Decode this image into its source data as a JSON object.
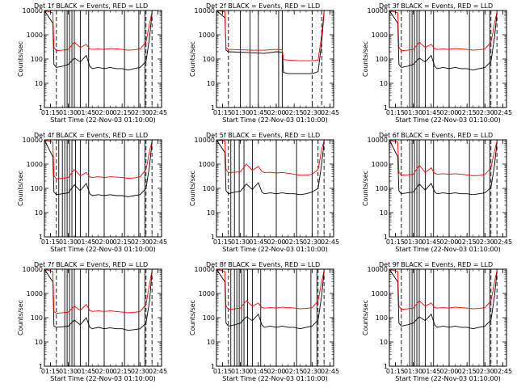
{
  "figure": {
    "ylabel": "Counts/sec",
    "xlabel": "Start Time (22-Nov-03 01:10:00)",
    "x_ticks": [
      "01:15",
      "01:30",
      "01:45",
      "02:00",
      "02:15",
      "02:30",
      "02:45"
    ],
    "y_ticks": [
      "1",
      "10",
      "100",
      "1000",
      "10000"
    ],
    "series_colors": {
      "events": "#000000",
      "lld": "#ff0000"
    }
  },
  "chart_data": [
    {
      "type": "line",
      "title": "Det 1f BLACK = Events, RED = LLD",
      "x": [
        "01:10",
        "01:17",
        "01:18",
        "01:20",
        "01:25",
        "01:30",
        "01:35",
        "01:40",
        "01:45",
        "01:48",
        "01:50",
        "01:55",
        "02:00",
        "02:05",
        "02:10",
        "02:15",
        "02:20",
        "02:25",
        "02:30",
        "02:35",
        "02:38",
        "02:40"
      ],
      "series": [
        {
          "values": [
            10000,
            3000,
            60,
            45,
            50,
            60,
            110,
            75,
            140,
            50,
            40,
            45,
            40,
            45,
            40,
            40,
            35,
            40,
            45,
            80,
            800,
            8000
          ]
        },
        {
          "values": [
            10000,
            8000,
            300,
            220,
            230,
            250,
            500,
            300,
            400,
            260,
            250,
            260,
            250,
            270,
            260,
            250,
            230,
            240,
            260,
            500,
            3000,
            9000
          ]
        }
      ],
      "xlim": [
        "01:10",
        "02:48"
      ],
      "ylim": [
        1,
        10000
      ],
      "yscale": "log",
      "vlines_solid": [
        "01:27",
        "01:29",
        "01:31",
        "01:33",
        "01:35",
        "01:40",
        "01:47",
        "02:00",
        "02:17",
        "02:29",
        "02:34"
      ],
      "vlines_dashed": [
        "01:20",
        "02:35",
        "02:40"
      ]
    },
    {
      "type": "line",
      "title": "Det 2f BLACK = Events, RED = LLD",
      "x": [
        "01:10",
        "01:17",
        "01:18",
        "01:20",
        "01:30",
        "01:40",
        "01:50",
        "02:00",
        "02:05",
        "02:06",
        "02:10",
        "02:20",
        "02:30",
        "02:35",
        "02:38",
        "02:40"
      ],
      "series": [
        {
          "values": [
            10000,
            5000,
            230,
            200,
            190,
            180,
            170,
            200,
            190,
            28,
            25,
            25,
            25,
            30,
            500,
            8000
          ]
        },
        {
          "values": [
            10000,
            9000,
            280,
            250,
            240,
            230,
            230,
            250,
            240,
            95,
            90,
            85,
            85,
            90,
            1000,
            9500
          ]
        }
      ],
      "xlim": [
        "01:10",
        "02:48"
      ],
      "ylim": [
        1,
        10000
      ],
      "yscale": "log",
      "vlines_solid": [
        "01:30",
        "01:38",
        "01:45",
        "02:02",
        "02:05"
      ],
      "vlines_dashed": [
        "01:20",
        "02:30",
        "02:38"
      ]
    },
    {
      "type": "line",
      "title": "Det 3f BLACK = Events, RED = LLD",
      "x": [
        "01:10",
        "01:17",
        "01:18",
        "01:20",
        "01:25",
        "01:30",
        "01:35",
        "01:40",
        "01:45",
        "01:48",
        "01:50",
        "01:55",
        "02:00",
        "02:05",
        "02:10",
        "02:15",
        "02:20",
        "02:25",
        "02:30",
        "02:35",
        "02:38",
        "02:40"
      ],
      "series": [
        {
          "values": [
            10000,
            3000,
            60,
            45,
            50,
            60,
            110,
            75,
            140,
            50,
            40,
            45,
            40,
            45,
            40,
            40,
            35,
            40,
            45,
            80,
            800,
            8000
          ]
        },
        {
          "values": [
            10000,
            8000,
            300,
            220,
            230,
            250,
            500,
            300,
            400,
            260,
            250,
            260,
            250,
            270,
            260,
            250,
            230,
            240,
            260,
            500,
            3000,
            9000
          ]
        }
      ],
      "xlim": [
        "01:10",
        "02:48"
      ],
      "ylim": [
        1,
        10000
      ],
      "yscale": "log",
      "vlines_solid": [
        "01:27",
        "01:29",
        "01:31",
        "01:33",
        "01:35",
        "01:40",
        "01:47",
        "02:00",
        "02:17",
        "02:29",
        "02:34"
      ],
      "vlines_dashed": [
        "01:20",
        "02:35",
        "02:40"
      ]
    },
    {
      "type": "line",
      "title": "Det 4f BLACK = Events, RED = LLD",
      "x": [
        "01:10",
        "01:17",
        "01:18",
        "01:20",
        "01:25",
        "01:30",
        "01:35",
        "01:40",
        "01:45",
        "01:48",
        "01:50",
        "01:55",
        "02:00",
        "02:05",
        "02:10",
        "02:15",
        "02:20",
        "02:25",
        "02:30",
        "02:35",
        "02:38",
        "02:40"
      ],
      "series": [
        {
          "values": [
            10000,
            2000,
            70,
            55,
            60,
            65,
            140,
            80,
            160,
            60,
            50,
            55,
            50,
            55,
            50,
            50,
            45,
            50,
            55,
            100,
            900,
            8000
          ]
        },
        {
          "values": [
            10000,
            8000,
            330,
            250,
            260,
            280,
            600,
            330,
            450,
            300,
            280,
            300,
            280,
            300,
            290,
            280,
            260,
            270,
            300,
            600,
            3500,
            9000
          ]
        }
      ],
      "xlim": [
        "01:10",
        "02:48"
      ],
      "ylim": [
        1,
        10000
      ],
      "yscale": "log",
      "vlines_solid": [
        "01:22",
        "01:25",
        "01:27",
        "01:29",
        "01:31",
        "01:33",
        "01:36",
        "01:40",
        "01:47",
        "02:00",
        "02:17",
        "02:29",
        "02:34"
      ],
      "vlines_dashed": [
        "01:20",
        "02:35",
        "02:40"
      ]
    },
    {
      "type": "line",
      "title": "Det 5f BLACK = Events, RED = LLD",
      "x": [
        "01:10",
        "01:17",
        "01:18",
        "01:20",
        "01:25",
        "01:30",
        "01:35",
        "01:40",
        "01:45",
        "01:48",
        "01:50",
        "01:55",
        "02:00",
        "02:05",
        "02:10",
        "02:15",
        "02:20",
        "02:25",
        "02:30",
        "02:35",
        "02:38",
        "02:40"
      ],
      "series": [
        {
          "values": [
            10000,
            3000,
            80,
            60,
            70,
            75,
            150,
            90,
            170,
            70,
            60,
            65,
            60,
            65,
            60,
            60,
            55,
            60,
            70,
            100,
            1000,
            8000
          ]
        },
        {
          "values": [
            10000,
            9000,
            600,
            450,
            460,
            480,
            1000,
            550,
            800,
            500,
            450,
            460,
            430,
            450,
            420,
            380,
            350,
            350,
            380,
            600,
            4000,
            9500
          ]
        }
      ],
      "xlim": [
        "01:10",
        "02:48"
      ],
      "ylim": [
        1,
        10000
      ],
      "yscale": "log",
      "vlines_solid": [
        "01:22",
        "01:25",
        "01:29",
        "01:33",
        "01:40",
        "02:00",
        "02:17",
        "02:30"
      ],
      "vlines_dashed": [
        "01:20",
        "02:35",
        "02:40"
      ]
    },
    {
      "type": "line",
      "title": "Det 6f BLACK = Events, RED = LLD",
      "x": [
        "01:10",
        "01:17",
        "01:18",
        "01:20",
        "01:25",
        "01:30",
        "01:35",
        "01:40",
        "01:45",
        "01:48",
        "01:50",
        "01:55",
        "02:00",
        "02:05",
        "02:10",
        "02:15",
        "02:20",
        "02:25",
        "02:30",
        "02:35",
        "02:38",
        "02:40"
      ],
      "series": [
        {
          "values": [
            10000,
            2000,
            80,
            60,
            65,
            70,
            150,
            85,
            160,
            70,
            60,
            65,
            60,
            65,
            60,
            60,
            55,
            60,
            65,
            110,
            900,
            8000
          ]
        },
        {
          "values": [
            10000,
            8000,
            450,
            350,
            360,
            380,
            900,
            450,
            700,
            420,
            380,
            400,
            380,
            400,
            380,
            360,
            330,
            340,
            370,
            700,
            3500,
            9000
          ]
        }
      ],
      "xlim": [
        "01:10",
        "02:48"
      ],
      "ylim": [
        1,
        10000
      ],
      "yscale": "log",
      "vlines_solid": [
        "01:27",
        "01:29",
        "01:31",
        "01:33",
        "01:35",
        "01:40",
        "01:47",
        "02:00",
        "02:17",
        "02:29",
        "02:34"
      ],
      "vlines_dashed": [
        "01:20",
        "02:35",
        "02:40"
      ]
    },
    {
      "type": "line",
      "title": "Det 7f BLACK = Events, RED = LLD",
      "x": [
        "01:10",
        "01:17",
        "01:18",
        "01:20",
        "01:25",
        "01:30",
        "01:35",
        "01:40",
        "01:45",
        "01:48",
        "01:50",
        "01:55",
        "02:00",
        "02:05",
        "02:10",
        "02:15",
        "02:20",
        "02:25",
        "02:30",
        "02:35",
        "02:38",
        "02:40"
      ],
      "series": [
        {
          "values": [
            10000,
            3000,
            45,
            40,
            42,
            45,
            80,
            50,
            100,
            40,
            35,
            40,
            35,
            38,
            35,
            35,
            30,
            32,
            35,
            60,
            500,
            8000
          ]
        },
        {
          "values": [
            10000,
            8000,
            180,
            150,
            160,
            170,
            300,
            200,
            350,
            200,
            180,
            190,
            180,
            190,
            180,
            170,
            160,
            165,
            180,
            350,
            2500,
            9000
          ]
        }
      ],
      "xlim": [
        "01:10",
        "02:48"
      ],
      "ylim": [
        1,
        10000
      ],
      "yscale": "log",
      "vlines_solid": [
        "01:27",
        "01:29",
        "01:31",
        "01:33",
        "01:35",
        "01:40",
        "01:47",
        "02:00",
        "02:17",
        "02:29",
        "02:34"
      ],
      "vlines_dashed": [
        "01:20",
        "02:35",
        "02:40"
      ]
    },
    {
      "type": "line",
      "title": "Det 8f BLACK = Events, RED = LLD",
      "x": [
        "01:10",
        "01:17",
        "01:18",
        "01:20",
        "01:25",
        "01:30",
        "01:35",
        "01:40",
        "01:45",
        "01:48",
        "01:50",
        "01:55",
        "02:00",
        "02:05",
        "02:10",
        "02:15",
        "02:20",
        "02:25",
        "02:30",
        "02:35",
        "02:38",
        "02:40"
      ],
      "series": [
        {
          "values": [
            10000,
            3000,
            60,
            45,
            50,
            60,
            110,
            75,
            140,
            50,
            40,
            45,
            40,
            45,
            40,
            40,
            35,
            40,
            45,
            80,
            800,
            8000
          ]
        },
        {
          "values": [
            10000,
            8000,
            300,
            220,
            230,
            250,
            500,
            300,
            400,
            260,
            250,
            260,
            250,
            270,
            260,
            250,
            230,
            240,
            260,
            500,
            3000,
            9000
          ]
        }
      ],
      "xlim": [
        "01:10",
        "02:48"
      ],
      "ylim": [
        1,
        10000
      ],
      "yscale": "log",
      "vlines_solid": [
        "01:22",
        "01:25",
        "01:27",
        "01:29",
        "01:31",
        "01:33",
        "01:36",
        "01:40",
        "01:47",
        "02:00",
        "02:17",
        "02:29",
        "02:34"
      ],
      "vlines_dashed": [
        "01:20",
        "02:35",
        "02:40"
      ]
    },
    {
      "type": "line",
      "title": "Det 9f BLACK = Events, RED = LLD",
      "x": [
        "01:10",
        "01:17",
        "01:18",
        "01:20",
        "01:25",
        "01:30",
        "01:35",
        "01:40",
        "01:45",
        "01:48",
        "01:50",
        "01:55",
        "02:00",
        "02:05",
        "02:10",
        "02:15",
        "02:20",
        "02:25",
        "02:30",
        "02:35",
        "02:38",
        "02:40"
      ],
      "series": [
        {
          "values": [
            10000,
            3000,
            60,
            45,
            50,
            60,
            110,
            75,
            140,
            50,
            40,
            45,
            40,
            45,
            40,
            40,
            35,
            40,
            45,
            80,
            800,
            8000
          ]
        },
        {
          "values": [
            10000,
            8000,
            300,
            220,
            230,
            250,
            500,
            300,
            400,
            260,
            250,
            260,
            250,
            270,
            260,
            250,
            230,
            240,
            260,
            500,
            3000,
            9000
          ]
        }
      ],
      "xlim": [
        "01:10",
        "02:48"
      ],
      "ylim": [
        1,
        10000
      ],
      "yscale": "log",
      "vlines_solid": [
        "01:27",
        "01:29",
        "01:31",
        "01:33",
        "01:35",
        "01:40",
        "01:47",
        "02:00",
        "02:17",
        "02:29",
        "02:34"
      ],
      "vlines_dashed": [
        "01:20",
        "02:35",
        "02:40"
      ]
    }
  ]
}
